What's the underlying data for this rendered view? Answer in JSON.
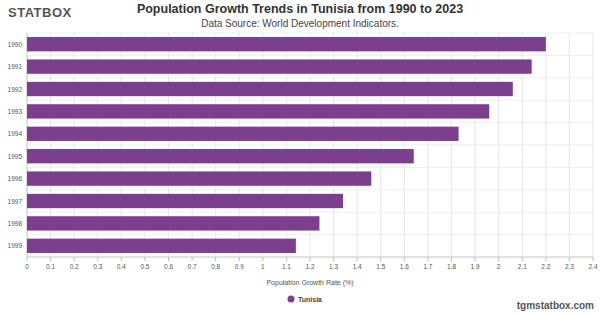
{
  "chart_data": {
    "type": "bar",
    "orientation": "horizontal",
    "title": "Population Growth Trends in Tunisia from 1990 to 2023",
    "subtitle": "Data Source: World Development Indicators.",
    "logo_text": "STATBOX",
    "website": "tgmstatbox.com",
    "x_label": "Population Growth Rate (%)",
    "categories": [
      "1990",
      "1991",
      "1992",
      "1993",
      "1994",
      "1995",
      "1996",
      "1997",
      "1998",
      "1999"
    ],
    "series": [
      {
        "name": "Tunisia",
        "color": "#7b3f8d",
        "values": [
          2.2,
          2.14,
          2.06,
          1.96,
          1.83,
          1.64,
          1.46,
          1.34,
          1.24,
          1.14
        ]
      }
    ],
    "xlim": [
      0,
      2.4
    ],
    "xticks": [
      0,
      0.1,
      0.2,
      0.3,
      0.4,
      0.5,
      0.6,
      0.7,
      0.8,
      0.9,
      1,
      1.1,
      1.2,
      1.3,
      1.4,
      1.5,
      1.6,
      1.7,
      1.8,
      1.9,
      2,
      2.1,
      2.2,
      2.3,
      2.4
    ],
    "grid": true,
    "legend": "bottom"
  }
}
